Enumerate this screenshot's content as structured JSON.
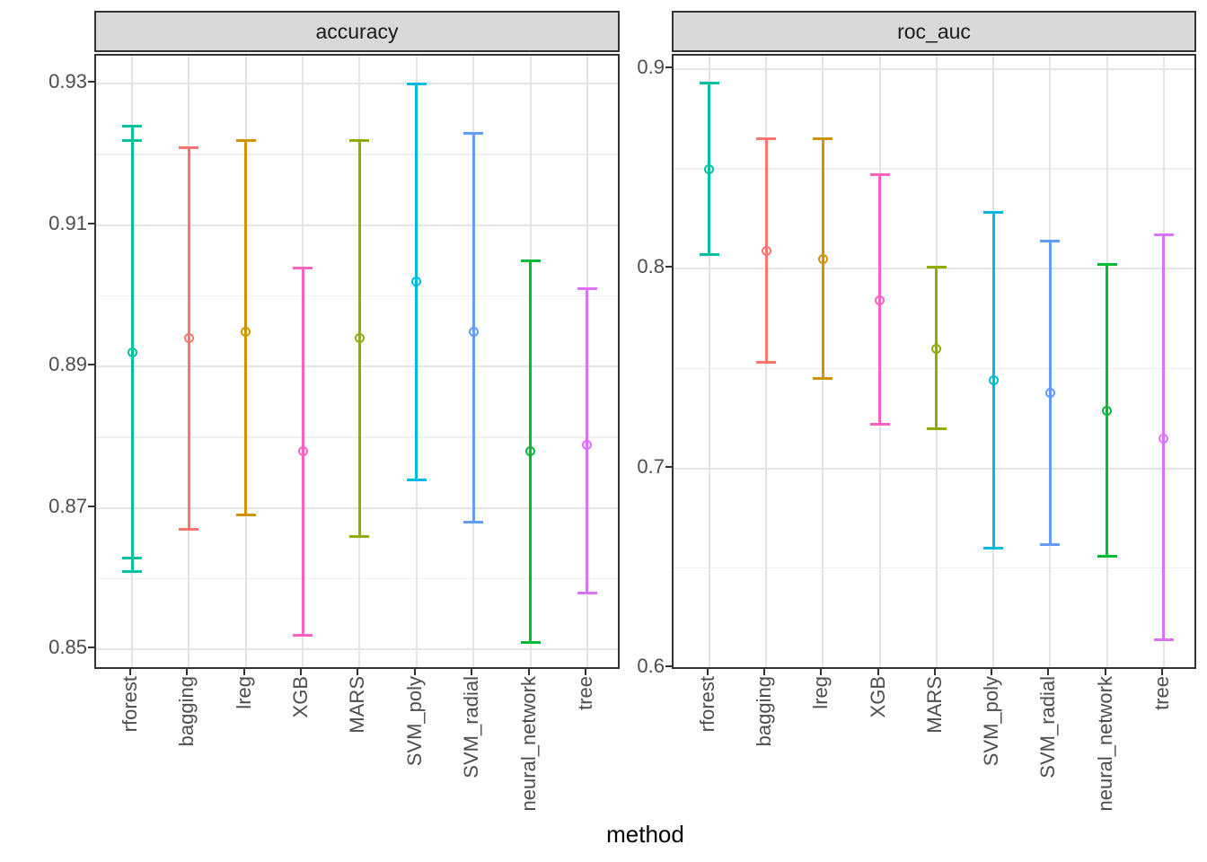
{
  "chart_data": {
    "type": "errorbar",
    "xlabel": "method",
    "grid": true,
    "legend": "none",
    "categories": [
      "rforest",
      "bagging",
      "lreg",
      "XGB",
      "MARS",
      "SVM_poly",
      "SVM_radial",
      "neural_network",
      "tree"
    ],
    "colors": {
      "rforest": "#00C19F",
      "bagging": "#F8766D",
      "lreg": "#D39200",
      "XGB": "#FF61C3",
      "MARS": "#93AA00",
      "SVM_poly": "#00B9E3",
      "SVM_radial": "#619CFF",
      "neural_network": "#00BA38",
      "tree": "#DB72FB"
    },
    "facets": [
      {
        "title": "accuracy",
        "ylim": [
          0.847,
          0.934
        ],
        "yticks": [
          "0.93",
          "0.91",
          "0.89",
          "0.87",
          "0.85"
        ],
        "ytick_values": [
          0.93,
          0.91,
          0.89,
          0.87,
          0.85
        ],
        "yminor": [
          0.92,
          0.9,
          0.88,
          0.86
        ],
        "series": [
          {
            "method": "rforest",
            "mid": 0.892,
            "lo": 0.861,
            "hi": 0.924,
            "lo2": 0.863,
            "hi2": 0.922
          },
          {
            "method": "bagging",
            "mid": 0.894,
            "lo": 0.867,
            "hi": 0.921
          },
          {
            "method": "lreg",
            "mid": 0.895,
            "lo": 0.869,
            "hi": 0.922
          },
          {
            "method": "XGB",
            "mid": 0.878,
            "lo": 0.852,
            "hi": 0.904
          },
          {
            "method": "MARS",
            "mid": 0.894,
            "lo": 0.866,
            "hi": 0.922
          },
          {
            "method": "SVM_poly",
            "mid": 0.902,
            "lo": 0.874,
            "hi": 0.93
          },
          {
            "method": "SVM_radial",
            "mid": 0.895,
            "lo": 0.868,
            "hi": 0.923
          },
          {
            "method": "neural_network",
            "mid": 0.878,
            "lo": 0.851,
            "hi": 0.905
          },
          {
            "method": "tree",
            "mid": 0.879,
            "lo": 0.858,
            "hi": 0.901
          }
        ]
      },
      {
        "title": "roc_auc",
        "ylim": [
          0.5986,
          0.9067
        ],
        "yticks": [
          "0.9",
          "0.8",
          "0.7",
          "0.6"
        ],
        "ytick_values": [
          0.9,
          0.8,
          0.7,
          0.6
        ],
        "yminor": [
          0.85,
          0.75,
          0.65
        ],
        "series": [
          {
            "method": "rforest",
            "mid": 0.85,
            "lo": 0.807,
            "hi": 0.893
          },
          {
            "method": "bagging",
            "mid": 0.809,
            "lo": 0.753,
            "hi": 0.865
          },
          {
            "method": "lreg",
            "mid": 0.805,
            "lo": 0.745,
            "hi": 0.865
          },
          {
            "method": "XGB",
            "mid": 0.784,
            "lo": 0.722,
            "hi": 0.847
          },
          {
            "method": "MARS",
            "mid": 0.76,
            "lo": 0.72,
            "hi": 0.801
          },
          {
            "method": "SVM_poly",
            "mid": 0.744,
            "lo": 0.66,
            "hi": 0.828
          },
          {
            "method": "SVM_radial",
            "mid": 0.738,
            "lo": 0.662,
            "hi": 0.814
          },
          {
            "method": "neural_network",
            "mid": 0.729,
            "lo": 0.656,
            "hi": 0.802
          },
          {
            "method": "tree",
            "mid": 0.715,
            "lo": 0.614,
            "hi": 0.817
          }
        ]
      }
    ]
  }
}
